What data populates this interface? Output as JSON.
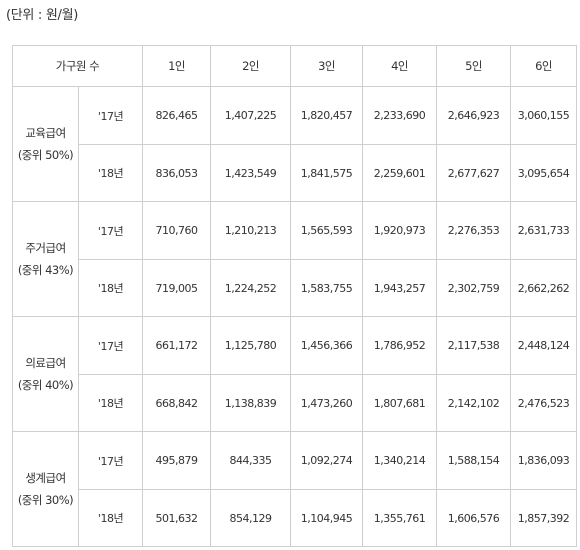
{
  "unit_label": "(단위 : 원/월)",
  "table": {
    "header_group": "가구원 수",
    "columns": [
      "1인",
      "2인",
      "3인",
      "4인",
      "5인",
      "6인"
    ],
    "categories": [
      {
        "name": "교육급여",
        "sub": "(중위 50%)",
        "rows": [
          {
            "year": "'17년",
            "values": [
              "826,465",
              "1,407,225",
              "1,820,457",
              "2,233,690",
              "2,646,923",
              "3,060,155"
            ]
          },
          {
            "year": "'18년",
            "values": [
              "836,053",
              "1,423,549",
              "1,841,575",
              "2,259,601",
              "2,677,627",
              "3,095,654"
            ]
          }
        ]
      },
      {
        "name": "주거급여",
        "sub": "(중위 43%)",
        "rows": [
          {
            "year": "'17년",
            "values": [
              "710,760",
              "1,210,213",
              "1,565,593",
              "1,920,973",
              "2,276,353",
              "2,631,733"
            ]
          },
          {
            "year": "'18년",
            "values": [
              "719,005",
              "1,224,252",
              "1,583,755",
              "1,943,257",
              "2,302,759",
              "2,662,262"
            ]
          }
        ]
      },
      {
        "name": "의료급여",
        "sub": "(중위 40%)",
        "rows": [
          {
            "year": "'17년",
            "values": [
              "661,172",
              "1,125,780",
              "1,456,366",
              "1,786,952",
              "2,117,538",
              "2,448,124"
            ]
          },
          {
            "year": "'18년",
            "values": [
              "668,842",
              "1,138,839",
              "1,473,260",
              "1,807,681",
              "2,142,102",
              "2,476,523"
            ]
          }
        ]
      },
      {
        "name": "생계급여",
        "sub": "(중위 30%)",
        "rows": [
          {
            "year": "'17년",
            "values": [
              "495,879",
              "844,335",
              "1,092,274",
              "1,340,214",
              "1,588,154",
              "1,836,093"
            ]
          },
          {
            "year": "'18년",
            "values": [
              "501,632",
              "854,129",
              "1,104,945",
              "1,355,761",
              "1,606,576",
              "1,857,392"
            ]
          }
        ]
      }
    ]
  }
}
